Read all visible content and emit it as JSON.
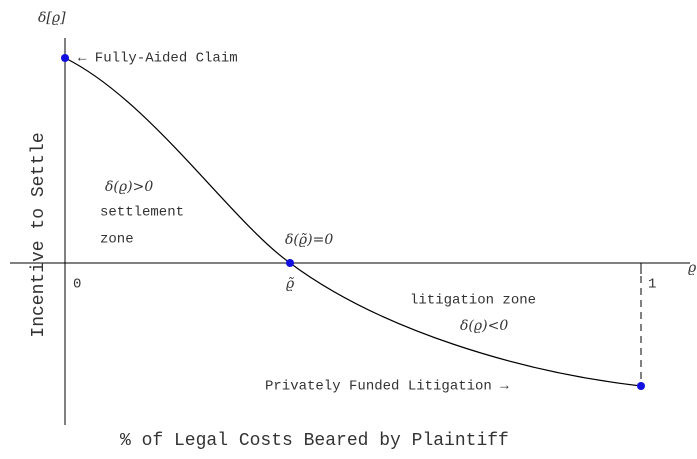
{
  "y_axis_symbol": "δ[ϱ]",
  "y_axis_label": "Incentive to Settle",
  "x_axis_symbol": "ϱ",
  "x_axis_label": "% of Legal Costs Beared by Plaintiff",
  "x_tick_start": "0",
  "x_tick_mid": "ϱ̃",
  "x_tick_end": "1",
  "annotations": {
    "fully_aided": "← Fully-Aided Claim",
    "positive": "δ(ϱ)>0",
    "settlement_1": "settlement",
    "settlement_2": "zone",
    "zero": "δ(ϱ̃)=0",
    "litigation": "litigation zone",
    "negative": "δ(ϱ)<0",
    "privately_funded": "Privately Funded Litigation →"
  }
}
